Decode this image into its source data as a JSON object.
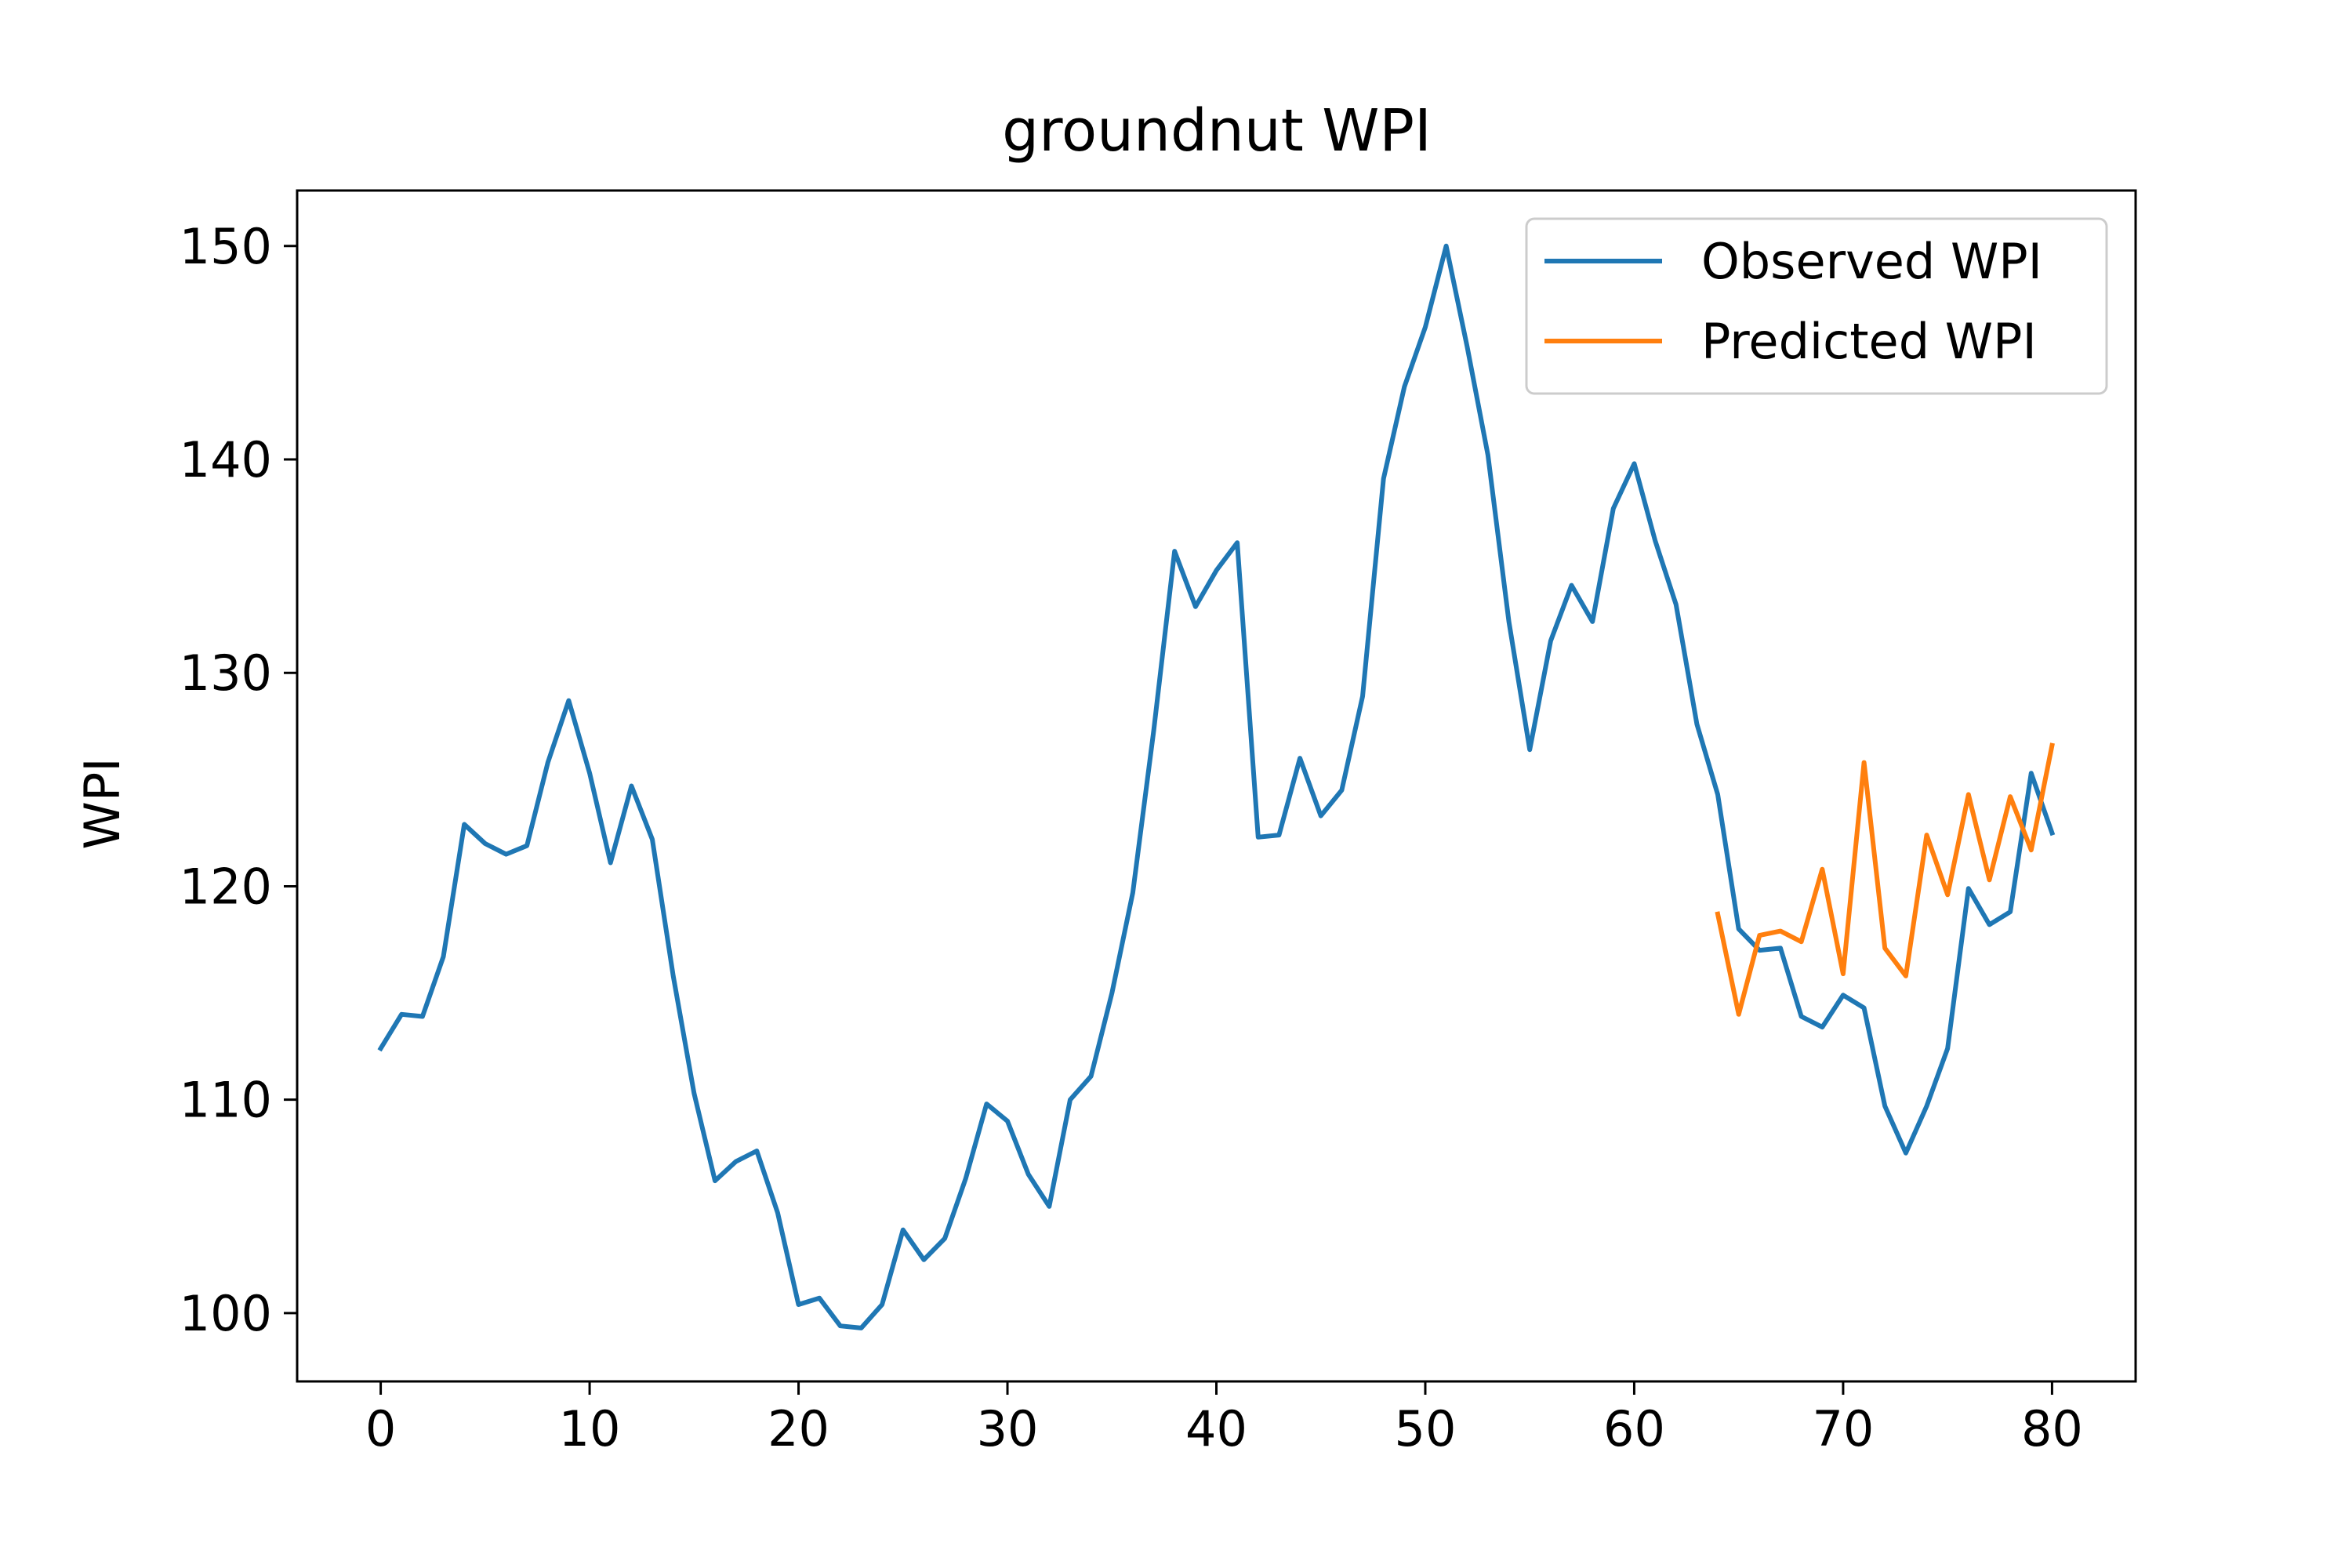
{
  "chart_data": {
    "type": "line",
    "title": "groundnut WPI",
    "xlabel": "",
    "ylabel": "WPI",
    "xlim": [
      -4,
      84
    ],
    "ylim": [
      96.8,
      152.6
    ],
    "xticks": [
      0,
      10,
      20,
      30,
      40,
      50,
      60,
      70,
      80
    ],
    "yticks": [
      100,
      110,
      120,
      130,
      140,
      150
    ],
    "grid": false,
    "legend_position": "top-right",
    "series": [
      {
        "name": "Observed WPI",
        "color": "#1f77b4",
        "x": [
          0,
          1,
          2,
          3,
          4,
          5,
          6,
          7,
          8,
          9,
          10,
          11,
          12,
          13,
          14,
          15,
          16,
          17,
          18,
          19,
          20,
          21,
          22,
          23,
          24,
          25,
          26,
          27,
          28,
          29,
          30,
          31,
          32,
          33,
          34,
          35,
          36,
          37,
          38,
          39,
          40,
          41,
          42,
          43,
          44,
          45,
          46,
          47,
          48,
          49,
          50,
          51,
          52,
          53,
          54,
          55,
          56,
          57,
          58,
          59,
          60,
          61,
          62,
          63,
          64,
          65,
          66,
          67,
          68,
          69,
          70,
          71,
          72,
          73,
          74,
          75,
          76,
          77,
          78,
          79,
          80
        ],
        "values": [
          112.4,
          114.0,
          113.9,
          116.7,
          122.9,
          122.0,
          121.5,
          121.9,
          125.8,
          128.7,
          125.3,
          121.1,
          124.7,
          122.2,
          115.8,
          110.3,
          106.2,
          107.1,
          107.6,
          104.7,
          100.4,
          100.7,
          99.4,
          99.3,
          100.4,
          103.9,
          102.5,
          103.5,
          106.3,
          109.8,
          109.0,
          106.5,
          105.0,
          110.0,
          111.1,
          115.0,
          119.7,
          127.3,
          135.7,
          133.1,
          134.8,
          136.1,
          122.3,
          122.4,
          126.0,
          123.3,
          124.5,
          128.9,
          139.1,
          143.4,
          146.2,
          150.0,
          145.3,
          140.2,
          132.4,
          126.4,
          131.5,
          134.1,
          132.4,
          137.7,
          139.8,
          136.2,
          133.2,
          127.6,
          124.3,
          118.0,
          117.0,
          117.1,
          113.9,
          113.4,
          114.9,
          114.3,
          109.7,
          107.5,
          109.7,
          112.4,
          119.9,
          118.2,
          118.8,
          125.3,
          122.5
        ]
      },
      {
        "name": "Predicted WPI",
        "color": "#ff7f0e",
        "x": [
          64,
          65,
          66,
          67,
          68,
          69,
          70,
          71,
          72,
          73,
          74,
          75,
          76,
          77,
          78,
          79,
          80
        ],
        "values": [
          118.7,
          114.0,
          117.7,
          117.9,
          117.4,
          120.8,
          115.9,
          125.8,
          117.1,
          115.8,
          122.4,
          119.6,
          124.3,
          120.3,
          124.2,
          121.7,
          126.6
        ]
      }
    ]
  }
}
